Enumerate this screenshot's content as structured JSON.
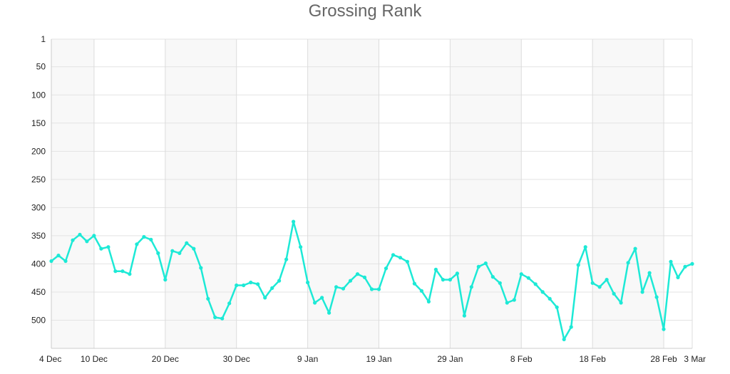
{
  "chart_data": {
    "type": "line",
    "title": "Grossing Rank",
    "xlabel": "",
    "ylabel": "",
    "x_range": [
      "4 Dec",
      "3 Mar"
    ],
    "y_inverted": true,
    "ylim": [
      1,
      550
    ],
    "y_ticks": [
      1,
      50,
      100,
      150,
      200,
      250,
      300,
      350,
      400,
      450,
      500
    ],
    "x_ticks": [
      {
        "label": "4 Dec",
        "day": 0
      },
      {
        "label": "10 Dec",
        "day": 6
      },
      {
        "label": "20 Dec",
        "day": 16
      },
      {
        "label": "30 Dec",
        "day": 26
      },
      {
        "label": "9 Jan",
        "day": 36
      },
      {
        "label": "19 Jan",
        "day": 46
      },
      {
        "label": "29 Jan",
        "day": 56
      },
      {
        "label": "8 Feb",
        "day": 66
      },
      {
        "label": "18 Feb",
        "day": 76
      },
      {
        "label": "28 Feb",
        "day": 86
      },
      {
        "label": "3 Mar",
        "day": 90
      }
    ],
    "grid": true,
    "line_color": "#1de9d6",
    "band_color": "#f8f8f8",
    "series": [
      {
        "values": [
          395,
          385,
          395,
          358,
          348,
          360,
          350,
          373,
          370,
          413,
          413,
          418,
          365,
          352,
          357,
          381,
          428,
          377,
          381,
          363,
          373,
          407,
          462,
          495,
          497,
          470,
          438,
          438,
          433,
          436,
          460,
          443,
          430,
          392,
          325,
          370,
          433,
          469,
          460,
          487,
          441,
          444,
          430,
          418,
          424,
          445,
          445,
          408,
          384,
          389,
          396,
          435,
          448,
          467,
          410,
          428,
          428,
          417,
          492,
          441,
          405,
          399,
          423,
          434,
          469,
          464,
          418,
          425,
          436,
          450,
          462,
          477,
          534,
          512,
          402,
          370,
          434,
          441,
          428,
          453,
          469,
          398,
          373,
          450,
          416,
          459,
          516,
          396,
          424,
          405,
          400
        ]
      }
    ]
  }
}
